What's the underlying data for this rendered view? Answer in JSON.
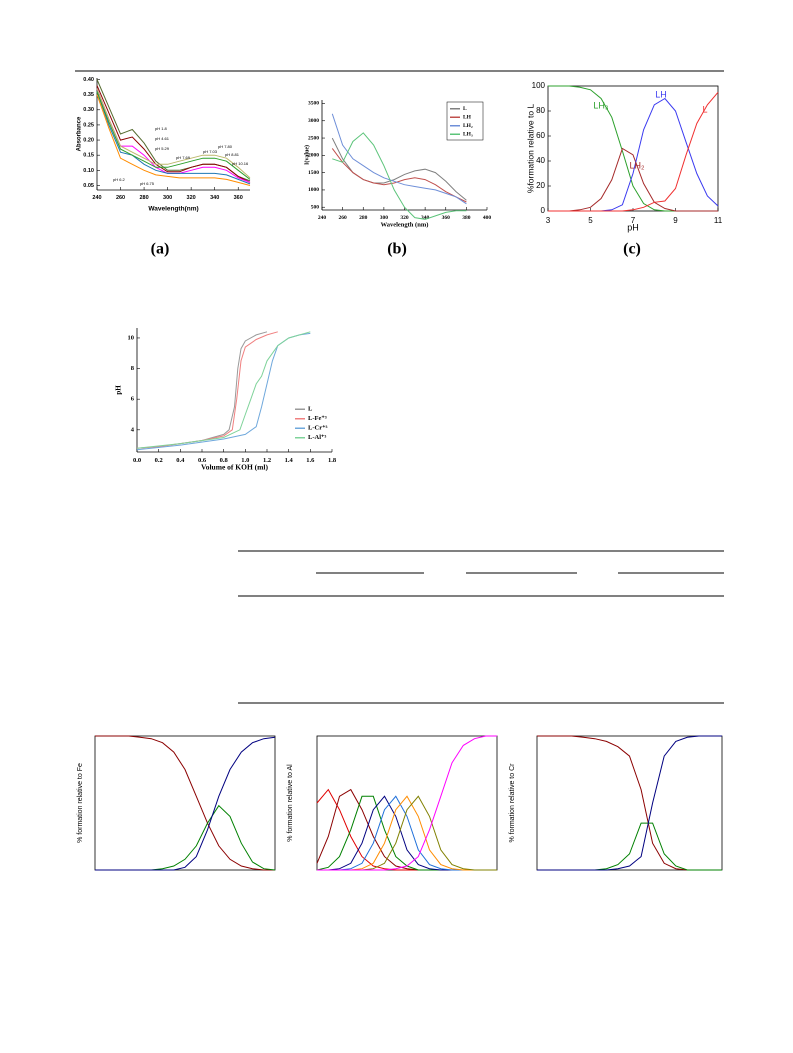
{
  "panel_labels": [
    "(a)",
    "(b)",
    "(c)"
  ],
  "chart_data": [
    {
      "type": "line",
      "x_label": "Wavelength(nm)",
      "y_label": "Absorbance",
      "xlim": [
        240,
        370
      ],
      "xticks": [
        240,
        260,
        280,
        300,
        320,
        340,
        360
      ],
      "ylim": [
        0.035,
        0.405
      ],
      "yticks": [
        0.05,
        {
          "value": 0.1,
          "label": "0.10"
        },
        0.15,
        {
          "value": 0.2,
          "label": "0.20"
        },
        0.25,
        {
          "value": 0.3,
          "label": "0.30"
        },
        0.35,
        {
          "value": 0.4,
          "label": "0.40"
        }
      ],
      "x": [
        240,
        250,
        260,
        270,
        280,
        290,
        300,
        310,
        320,
        330,
        340,
        350,
        360,
        370
      ],
      "series": [
        {
          "color": "#556b2f",
          "values": [
            0.4,
            0.31,
            0.22,
            0.235,
            0.19,
            0.13,
            0.1,
            0.1,
            0.11,
            0.12,
            0.12,
            0.11,
            0.08,
            0.065
          ]
        },
        {
          "color": "#8b0000",
          "values": [
            0.38,
            0.29,
            0.2,
            0.21,
            0.17,
            0.12,
            0.095,
            0.095,
            0.11,
            0.12,
            0.12,
            0.11,
            0.08,
            0.06
          ]
        },
        {
          "color": "#ff00ff",
          "values": [
            0.37,
            0.27,
            0.18,
            0.18,
            0.15,
            0.11,
            0.09,
            0.09,
            0.1,
            0.11,
            0.11,
            0.1,
            0.075,
            0.06
          ]
        },
        {
          "color": "#1f77b4",
          "values": [
            0.36,
            0.25,
            0.16,
            0.15,
            0.12,
            0.1,
            0.09,
            0.09,
            0.09,
            0.09,
            0.09,
            0.085,
            0.07,
            0.055
          ]
        },
        {
          "color": "#ff8c00",
          "values": [
            0.35,
            0.24,
            0.14,
            0.12,
            0.1,
            0.085,
            0.08,
            0.075,
            0.075,
            0.075,
            0.075,
            0.07,
            0.06,
            0.05
          ]
        },
        {
          "color": "#2ca02c",
          "values": [
            0.36,
            0.26,
            0.17,
            0.15,
            0.13,
            0.11,
            0.11,
            0.12,
            0.13,
            0.14,
            0.14,
            0.13,
            0.1,
            0.07
          ]
        },
        {
          "color": "#bdb76b",
          "values": [
            0.37,
            0.27,
            0.18,
            0.16,
            0.14,
            0.12,
            0.12,
            0.13,
            0.14,
            0.15,
            0.15,
            0.14,
            0.11,
            0.075
          ]
        }
      ],
      "annotations": [
        "pH 1.8",
        "pH 4.61",
        "pH 5.29",
        "pH 7.80",
        "pH 7.03",
        "pH 8.81",
        "pH 7.69",
        "pH 10.16",
        "pH 6.2",
        "pH 6.75"
      ]
    },
    {
      "type": "line",
      "x_label": "Wavelength (nm)",
      "y_label": "I(value)",
      "xlim": [
        240,
        400
      ],
      "xticks": [
        240,
        260,
        280,
        300,
        320,
        340,
        360,
        380,
        400
      ],
      "ylim": [
        420,
        3600
      ],
      "yticks": [
        500,
        1000,
        1500,
        2000,
        2500,
        3000,
        3500
      ],
      "legend": "upper right",
      "x": [
        250,
        260,
        270,
        280,
        290,
        300,
        310,
        320,
        330,
        340,
        350,
        360,
        370,
        380
      ],
      "series": [
        {
          "name": "L",
          "color": "#808080",
          "values": [
            2500,
            1900,
            1500,
            1300,
            1200,
            1200,
            1300,
            1450,
            1550,
            1600,
            1500,
            1250,
            950,
            700
          ]
        },
        {
          "name": "LH",
          "color": "#c0504d",
          "values": [
            2200,
            1800,
            1500,
            1300,
            1200,
            1150,
            1200,
            1300,
            1350,
            1300,
            1150,
            950,
            800,
            650
          ]
        },
        {
          "name": "LH₂",
          "color": "#6f8fd8",
          "values": [
            3200,
            2300,
            1900,
            1700,
            1500,
            1350,
            1250,
            1150,
            1100,
            1050,
            1000,
            900,
            800,
            600
          ]
        },
        {
          "name": "LH₃",
          "color": "#5cc47a",
          "values": [
            1900,
            1800,
            2400,
            2650,
            2300,
            1700,
            1000,
            500,
            200,
            150,
            250,
            350,
            400,
            400
          ]
        }
      ]
    },
    {
      "type": "line",
      "x_label": "pH",
      "y_label": "%formation relative to L",
      "xlim": [
        3,
        11
      ],
      "xticks": [
        3,
        5,
        7,
        9,
        11
      ],
      "ylim": [
        0,
        100
      ],
      "yticks": [
        0,
        20,
        40,
        60,
        80,
        100
      ],
      "legend": "inline",
      "x": [
        3,
        3.5,
        4,
        4.5,
        5,
        5.5,
        6,
        6.5,
        7,
        7.5,
        8,
        8.5,
        9,
        9.5,
        10,
        10.5,
        11
      ],
      "series": [
        {
          "name": "LH₃",
          "color": "#2ca02c",
          "values": [
            100,
            100,
            100,
            99,
            97,
            90,
            75,
            48,
            20,
            6,
            1,
            0,
            0,
            0,
            0,
            0,
            0
          ]
        },
        {
          "name": "LH₂",
          "color": "#a52a2a",
          "values": [
            0,
            0,
            0,
            1,
            3,
            10,
            25,
            50,
            45,
            22,
            7,
            2,
            0,
            0,
            0,
            0,
            0
          ]
        },
        {
          "name": "LH",
          "color": "#3a3af0",
          "values": [
            0,
            0,
            0,
            0,
            0,
            0,
            1,
            5,
            30,
            65,
            85,
            90,
            80,
            55,
            30,
            12,
            4
          ]
        },
        {
          "name": "L",
          "color": "#f03030",
          "values": [
            0,
            0,
            0,
            0,
            0,
            0,
            0,
            0,
            1,
            3,
            7,
            8,
            18,
            45,
            70,
            85,
            95
          ]
        }
      ]
    },
    {
      "type": "line",
      "x_label": "Volume of KOH (ml)",
      "y_label": "pH",
      "xlim": [
        0,
        1.8
      ],
      "xticks": [
        {
          "value": 0,
          "label": "0.0"
        },
        0.2,
        0.4,
        0.6,
        0.8,
        {
          "value": 1,
          "label": "1.0"
        },
        1.2,
        1.4,
        1.6,
        1.8
      ],
      "ylim": [
        2.55,
        10.65
      ],
      "yticks": [
        4,
        6,
        8,
        10
      ],
      "legend": "lower right",
      "series": [
        {
          "name": "L",
          "color": "#9a9a9a",
          "x": [
            0,
            0.2,
            0.4,
            0.6,
            0.8,
            0.85,
            0.9,
            0.93,
            0.96,
            1.0,
            1.1,
            1.2
          ],
          "values": [
            2.8,
            2.9,
            3.1,
            3.3,
            3.7,
            4.0,
            5.5,
            8.0,
            9.3,
            9.8,
            10.2,
            10.4
          ]
        },
        {
          "name": "L-Fe⁺³",
          "color": "#f08080",
          "x": [
            0,
            0.2,
            0.4,
            0.6,
            0.8,
            0.88,
            0.92,
            0.96,
            1.0,
            1.1,
            1.2,
            1.3
          ],
          "values": [
            2.8,
            2.9,
            3.1,
            3.3,
            3.6,
            4.0,
            6.0,
            8.5,
            9.4,
            9.9,
            10.2,
            10.4
          ]
        },
        {
          "name": "L-Cr⁺³",
          "color": "#6fa8dc",
          "x": [
            0,
            0.4,
            0.8,
            1.0,
            1.1,
            1.15,
            1.2,
            1.25,
            1.3,
            1.4,
            1.5,
            1.6
          ],
          "values": [
            2.7,
            3.0,
            3.4,
            3.7,
            4.2,
            5.5,
            7.0,
            8.5,
            9.5,
            10.0,
            10.2,
            10.3
          ]
        },
        {
          "name": "L-Al⁺³",
          "color": "#7fd39a",
          "x": [
            0,
            0.4,
            0.8,
            0.95,
            1.0,
            1.05,
            1.1,
            1.15,
            1.2,
            1.3,
            1.4,
            1.6
          ],
          "values": [
            2.8,
            3.1,
            3.5,
            4.0,
            5.0,
            6.0,
            7.0,
            7.5,
            8.5,
            9.5,
            10.0,
            10.4
          ]
        }
      ]
    },
    {
      "type": "line",
      "y_label": "% formation relative to Fe",
      "xlim": [
        0,
        16
      ],
      "ylim": [
        0,
        100
      ],
      "x": [
        0,
        1,
        2,
        3,
        4,
        5,
        6,
        7,
        8,
        9,
        10,
        11,
        12,
        13,
        14,
        15,
        16
      ],
      "series": [
        {
          "color": "#8b0000",
          "values": [
            100,
            100,
            100,
            100,
            99,
            98,
            95,
            88,
            75,
            55,
            35,
            18,
            8,
            3,
            1,
            0,
            0
          ]
        },
        {
          "color": "#008000",
          "values": [
            0,
            0,
            0,
            0,
            0,
            0,
            1,
            3,
            8,
            18,
            35,
            48,
            40,
            20,
            6,
            1,
            0
          ]
        },
        {
          "color": "#000080",
          "values": [
            0,
            0,
            0,
            0,
            0,
            0,
            0,
            0,
            2,
            10,
            30,
            55,
            75,
            88,
            95,
            98,
            99
          ]
        }
      ]
    },
    {
      "type": "line",
      "y_label": "% formation relative to Al",
      "xlim": [
        0,
        16
      ],
      "ylim": [
        0,
        100
      ],
      "x": [
        0,
        1,
        2,
        3,
        4,
        5,
        6,
        7,
        8,
        9,
        10,
        11,
        12,
        13,
        14,
        15,
        16
      ],
      "series": [
        {
          "color": "#e00000",
          "values": [
            50,
            60,
            45,
            25,
            10,
            3,
            1,
            0,
            0,
            0,
            0,
            0,
            0,
            0,
            0,
            0,
            0
          ]
        },
        {
          "color": "#8b0000",
          "values": [
            5,
            25,
            55,
            60,
            45,
            25,
            10,
            3,
            1,
            0,
            0,
            0,
            0,
            0,
            0,
            0,
            0
          ]
        },
        {
          "color": "#008000",
          "values": [
            0,
            2,
            10,
            30,
            55,
            55,
            30,
            10,
            3,
            0,
            0,
            0,
            0,
            0,
            0,
            0,
            0
          ]
        },
        {
          "color": "#000080",
          "values": [
            0,
            0,
            1,
            5,
            20,
            45,
            55,
            40,
            15,
            4,
            1,
            0,
            0,
            0,
            0,
            0,
            0
          ]
        },
        {
          "color": "#1e6fd9",
          "values": [
            0,
            0,
            0,
            1,
            5,
            20,
            45,
            55,
            40,
            15,
            4,
            1,
            0,
            0,
            0,
            0,
            0
          ]
        },
        {
          "color": "#ff8c00",
          "values": [
            0,
            0,
            0,
            0,
            1,
            5,
            20,
            45,
            55,
            40,
            15,
            4,
            1,
            0,
            0,
            0,
            0
          ]
        },
        {
          "color": "#808000",
          "values": [
            0,
            0,
            0,
            0,
            0,
            1,
            5,
            20,
            45,
            55,
            40,
            15,
            4,
            1,
            0,
            0,
            0
          ]
        },
        {
          "color": "#ff00ff",
          "values": [
            0,
            0,
            0,
            0,
            0,
            0,
            0,
            1,
            3,
            10,
            30,
            55,
            80,
            93,
            98,
            100,
            100
          ]
        }
      ]
    },
    {
      "type": "line",
      "y_label": "% formation relative to Cr",
      "xlim": [
        0,
        16
      ],
      "ylim": [
        0,
        100
      ],
      "x": [
        0,
        1,
        2,
        3,
        4,
        5,
        6,
        7,
        8,
        9,
        10,
        11,
        12,
        13,
        14,
        15,
        16
      ],
      "series": [
        {
          "color": "#8b0000",
          "values": [
            100,
            100,
            100,
            100,
            99,
            98,
            96,
            92,
            85,
            60,
            20,
            5,
            1,
            0,
            0,
            0,
            0
          ]
        },
        {
          "color": "#008000",
          "values": [
            0,
            0,
            0,
            0,
            0,
            0,
            1,
            4,
            12,
            35,
            35,
            12,
            3,
            0,
            0,
            0,
            0
          ]
        },
        {
          "color": "#000080",
          "values": [
            0,
            0,
            0,
            0,
            0,
            0,
            0,
            1,
            3,
            10,
            50,
            85,
            96,
            99,
            100,
            100,
            100
          ]
        }
      ]
    }
  ]
}
